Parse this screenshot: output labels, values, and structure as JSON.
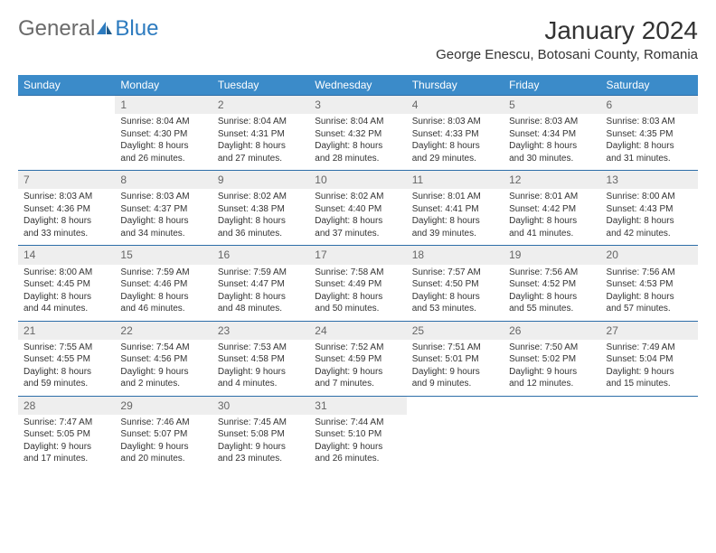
{
  "logo": {
    "part1": "General",
    "part2": "Blue"
  },
  "title": "January 2024",
  "location": "George Enescu, Botosani County, Romania",
  "colors": {
    "header_bg": "#3b8bc9",
    "header_fg": "#ffffff",
    "daynum_bg": "#eeeeee",
    "daynum_fg": "#666666",
    "row_border": "#2d6ea8",
    "logo_gray": "#6a6a6a",
    "logo_blue": "#2d7bbf"
  },
  "day_headers": [
    "Sunday",
    "Monday",
    "Tuesday",
    "Wednesday",
    "Thursday",
    "Friday",
    "Saturday"
  ],
  "weeks": [
    [
      null,
      {
        "n": "1",
        "sr": "Sunrise: 8:04 AM",
        "ss": "Sunset: 4:30 PM",
        "d1": "Daylight: 8 hours",
        "d2": "and 26 minutes."
      },
      {
        "n": "2",
        "sr": "Sunrise: 8:04 AM",
        "ss": "Sunset: 4:31 PM",
        "d1": "Daylight: 8 hours",
        "d2": "and 27 minutes."
      },
      {
        "n": "3",
        "sr": "Sunrise: 8:04 AM",
        "ss": "Sunset: 4:32 PM",
        "d1": "Daylight: 8 hours",
        "d2": "and 28 minutes."
      },
      {
        "n": "4",
        "sr": "Sunrise: 8:03 AM",
        "ss": "Sunset: 4:33 PM",
        "d1": "Daylight: 8 hours",
        "d2": "and 29 minutes."
      },
      {
        "n": "5",
        "sr": "Sunrise: 8:03 AM",
        "ss": "Sunset: 4:34 PM",
        "d1": "Daylight: 8 hours",
        "d2": "and 30 minutes."
      },
      {
        "n": "6",
        "sr": "Sunrise: 8:03 AM",
        "ss": "Sunset: 4:35 PM",
        "d1": "Daylight: 8 hours",
        "d2": "and 31 minutes."
      }
    ],
    [
      {
        "n": "7",
        "sr": "Sunrise: 8:03 AM",
        "ss": "Sunset: 4:36 PM",
        "d1": "Daylight: 8 hours",
        "d2": "and 33 minutes."
      },
      {
        "n": "8",
        "sr": "Sunrise: 8:03 AM",
        "ss": "Sunset: 4:37 PM",
        "d1": "Daylight: 8 hours",
        "d2": "and 34 minutes."
      },
      {
        "n": "9",
        "sr": "Sunrise: 8:02 AM",
        "ss": "Sunset: 4:38 PM",
        "d1": "Daylight: 8 hours",
        "d2": "and 36 minutes."
      },
      {
        "n": "10",
        "sr": "Sunrise: 8:02 AM",
        "ss": "Sunset: 4:40 PM",
        "d1": "Daylight: 8 hours",
        "d2": "and 37 minutes."
      },
      {
        "n": "11",
        "sr": "Sunrise: 8:01 AM",
        "ss": "Sunset: 4:41 PM",
        "d1": "Daylight: 8 hours",
        "d2": "and 39 minutes."
      },
      {
        "n": "12",
        "sr": "Sunrise: 8:01 AM",
        "ss": "Sunset: 4:42 PM",
        "d1": "Daylight: 8 hours",
        "d2": "and 41 minutes."
      },
      {
        "n": "13",
        "sr": "Sunrise: 8:00 AM",
        "ss": "Sunset: 4:43 PM",
        "d1": "Daylight: 8 hours",
        "d2": "and 42 minutes."
      }
    ],
    [
      {
        "n": "14",
        "sr": "Sunrise: 8:00 AM",
        "ss": "Sunset: 4:45 PM",
        "d1": "Daylight: 8 hours",
        "d2": "and 44 minutes."
      },
      {
        "n": "15",
        "sr": "Sunrise: 7:59 AM",
        "ss": "Sunset: 4:46 PM",
        "d1": "Daylight: 8 hours",
        "d2": "and 46 minutes."
      },
      {
        "n": "16",
        "sr": "Sunrise: 7:59 AM",
        "ss": "Sunset: 4:47 PM",
        "d1": "Daylight: 8 hours",
        "d2": "and 48 minutes."
      },
      {
        "n": "17",
        "sr": "Sunrise: 7:58 AM",
        "ss": "Sunset: 4:49 PM",
        "d1": "Daylight: 8 hours",
        "d2": "and 50 minutes."
      },
      {
        "n": "18",
        "sr": "Sunrise: 7:57 AM",
        "ss": "Sunset: 4:50 PM",
        "d1": "Daylight: 8 hours",
        "d2": "and 53 minutes."
      },
      {
        "n": "19",
        "sr": "Sunrise: 7:56 AM",
        "ss": "Sunset: 4:52 PM",
        "d1": "Daylight: 8 hours",
        "d2": "and 55 minutes."
      },
      {
        "n": "20",
        "sr": "Sunrise: 7:56 AM",
        "ss": "Sunset: 4:53 PM",
        "d1": "Daylight: 8 hours",
        "d2": "and 57 minutes."
      }
    ],
    [
      {
        "n": "21",
        "sr": "Sunrise: 7:55 AM",
        "ss": "Sunset: 4:55 PM",
        "d1": "Daylight: 8 hours",
        "d2": "and 59 minutes."
      },
      {
        "n": "22",
        "sr": "Sunrise: 7:54 AM",
        "ss": "Sunset: 4:56 PM",
        "d1": "Daylight: 9 hours",
        "d2": "and 2 minutes."
      },
      {
        "n": "23",
        "sr": "Sunrise: 7:53 AM",
        "ss": "Sunset: 4:58 PM",
        "d1": "Daylight: 9 hours",
        "d2": "and 4 minutes."
      },
      {
        "n": "24",
        "sr": "Sunrise: 7:52 AM",
        "ss": "Sunset: 4:59 PM",
        "d1": "Daylight: 9 hours",
        "d2": "and 7 minutes."
      },
      {
        "n": "25",
        "sr": "Sunrise: 7:51 AM",
        "ss": "Sunset: 5:01 PM",
        "d1": "Daylight: 9 hours",
        "d2": "and 9 minutes."
      },
      {
        "n": "26",
        "sr": "Sunrise: 7:50 AM",
        "ss": "Sunset: 5:02 PM",
        "d1": "Daylight: 9 hours",
        "d2": "and 12 minutes."
      },
      {
        "n": "27",
        "sr": "Sunrise: 7:49 AM",
        "ss": "Sunset: 5:04 PM",
        "d1": "Daylight: 9 hours",
        "d2": "and 15 minutes."
      }
    ],
    [
      {
        "n": "28",
        "sr": "Sunrise: 7:47 AM",
        "ss": "Sunset: 5:05 PM",
        "d1": "Daylight: 9 hours",
        "d2": "and 17 minutes."
      },
      {
        "n": "29",
        "sr": "Sunrise: 7:46 AM",
        "ss": "Sunset: 5:07 PM",
        "d1": "Daylight: 9 hours",
        "d2": "and 20 minutes."
      },
      {
        "n": "30",
        "sr": "Sunrise: 7:45 AM",
        "ss": "Sunset: 5:08 PM",
        "d1": "Daylight: 9 hours",
        "d2": "and 23 minutes."
      },
      {
        "n": "31",
        "sr": "Sunrise: 7:44 AM",
        "ss": "Sunset: 5:10 PM",
        "d1": "Daylight: 9 hours",
        "d2": "and 26 minutes."
      },
      null,
      null,
      null
    ]
  ]
}
